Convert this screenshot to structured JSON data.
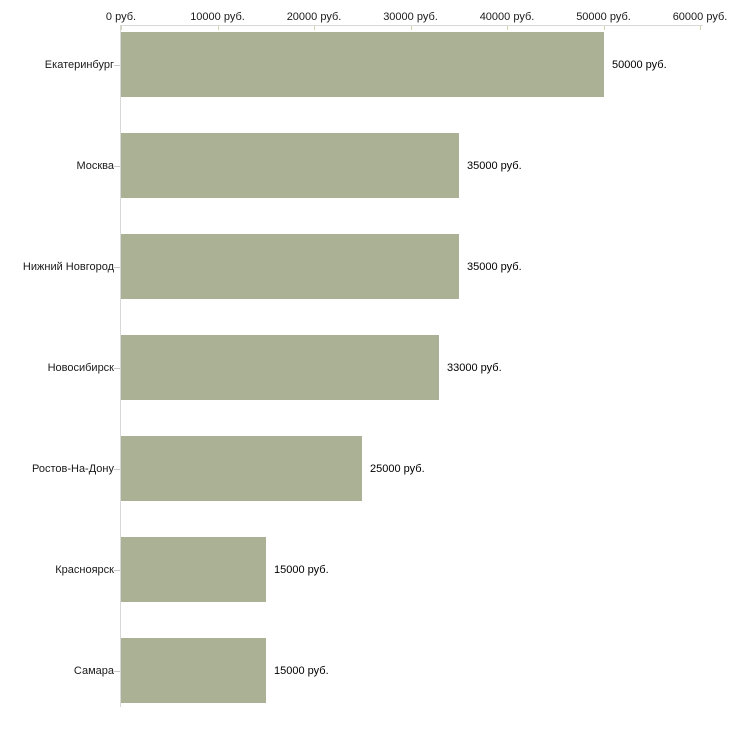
{
  "chart_data": {
    "type": "bar",
    "orientation": "horizontal",
    "title": "",
    "xlabel": "",
    "ylabel": "",
    "categories": [
      "Екатеринбург",
      "Москва",
      "Нижний Новгород",
      "Новосибирск",
      "Ростов-На-Дону",
      "Красноярск",
      "Самара"
    ],
    "values": [
      50000,
      35000,
      35000,
      33000,
      25000,
      15000,
      15000
    ],
    "value_labels": [
      "50000 руб.",
      "35000 руб.",
      "35000 руб.",
      "33000 руб.",
      "25000 руб.",
      "15000 руб.",
      "15000 руб."
    ],
    "x_ticks": [
      "0 руб.",
      "10000 руб.",
      "20000 руб.",
      "30000 руб.",
      "40000 руб.",
      "50000 руб.",
      "60000 руб."
    ],
    "xlim": [
      0,
      60000
    ],
    "x_axis_position": "top",
    "grid": "off",
    "legend": "none",
    "bar_color": "#abb195",
    "axis_line_color": "#d8d8d8",
    "x_tick_color": "#d3d3b4",
    "y_tick_color": "#c9c9c9",
    "text_color": "#1a1a1a",
    "background_color": "#ffffff"
  }
}
